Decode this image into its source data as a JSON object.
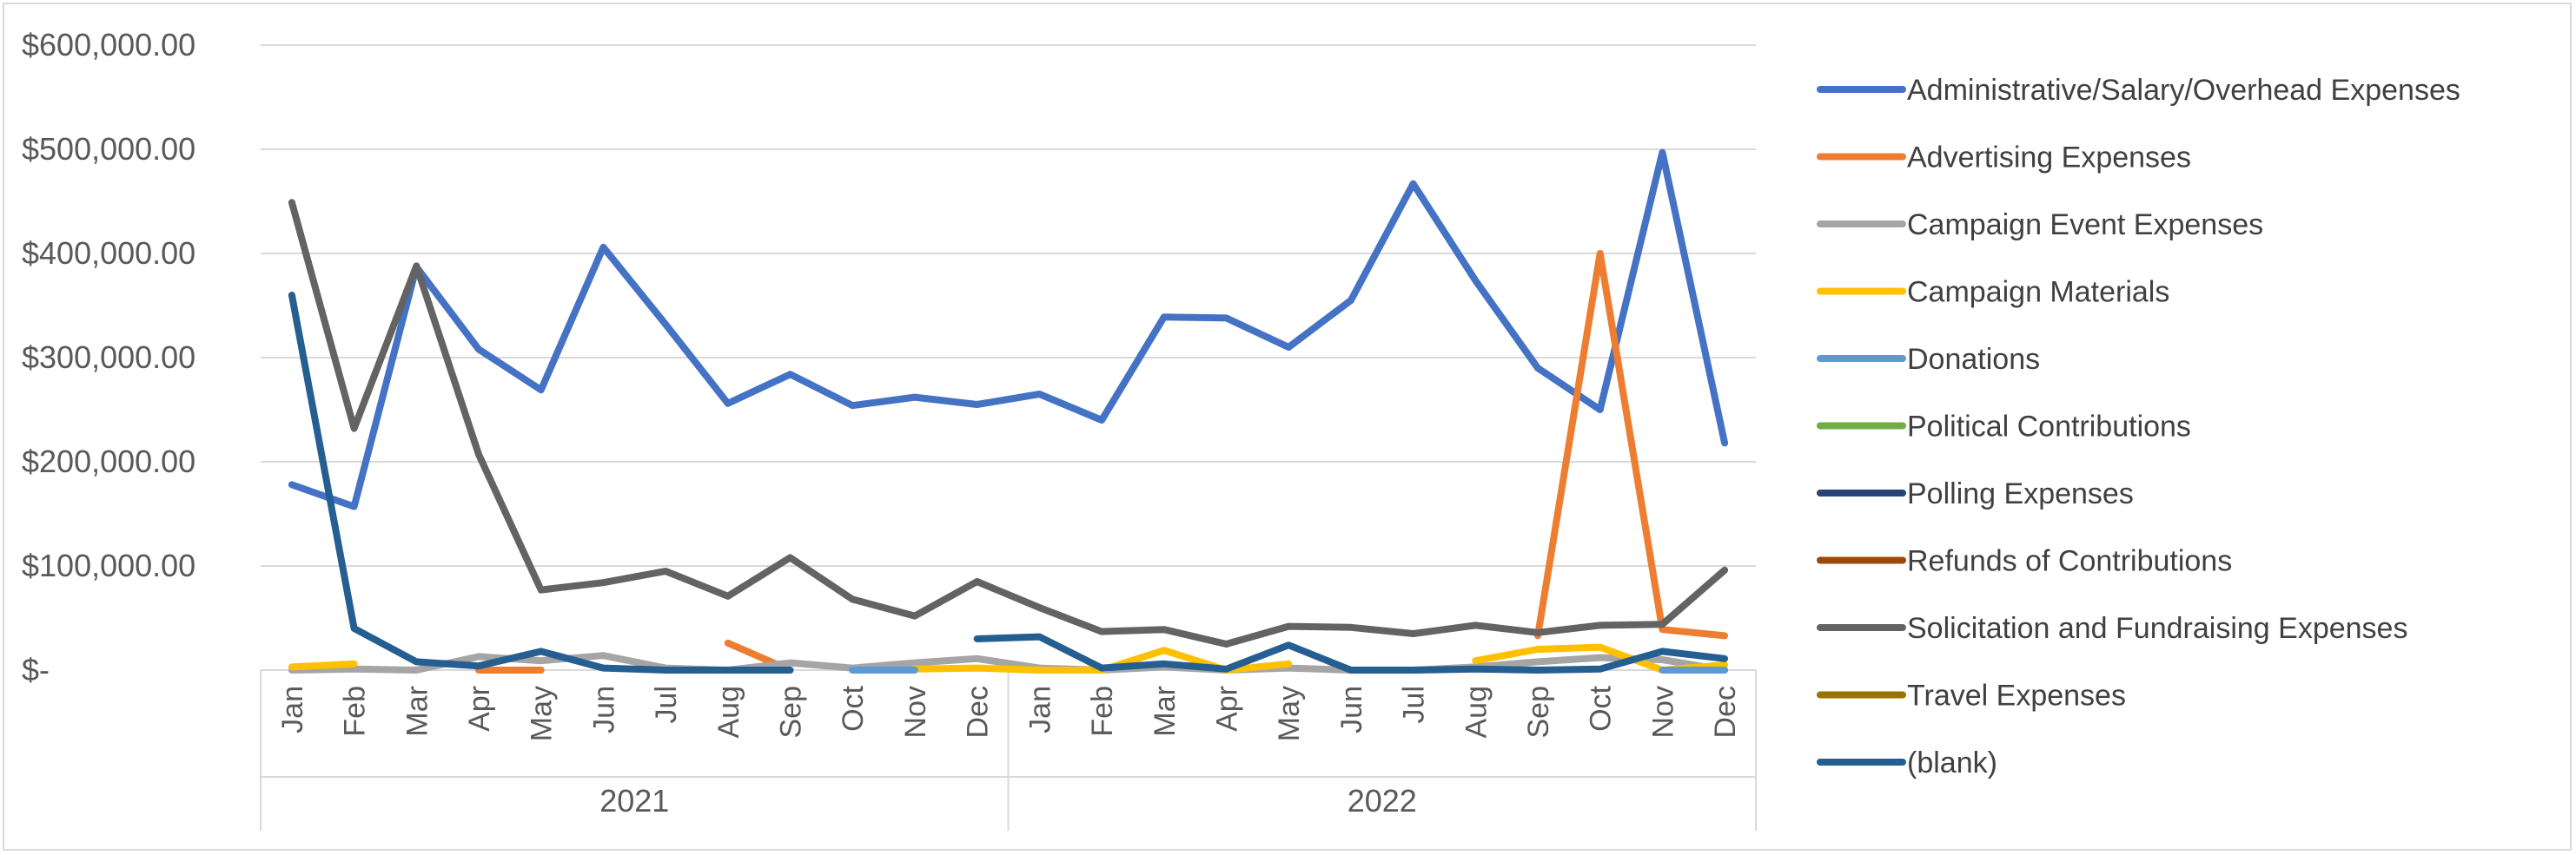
{
  "chart_data": {
    "type": "line",
    "title": "",
    "xlabel": "",
    "ylabel": "",
    "ylim": [
      0,
      600000
    ],
    "yticks": [
      600000,
      500000,
      400000,
      300000,
      200000,
      100000,
      0
    ],
    "ytick_labels": [
      "$600,000.00",
      "$500,000.00",
      "$400,000.00",
      "$300,000.00",
      "$200,000.00",
      "$100,000.00",
      "$-"
    ],
    "grid": true,
    "legend_position": "right",
    "categories": [
      "Jan",
      "Feb",
      "Mar",
      "Apr",
      "May",
      "Jun",
      "Jul",
      "Aug",
      "Sep",
      "Oct",
      "Nov",
      "Dec",
      "Jan",
      "Feb",
      "Mar",
      "Apr",
      "May",
      "Jun",
      "Jul",
      "Aug",
      "Sep",
      "Oct",
      "Nov",
      "Dec"
    ],
    "groups": [
      {
        "label": "2021",
        "start": 0,
        "end": 11
      },
      {
        "label": "2022",
        "start": 12,
        "end": 23
      }
    ],
    "series": [
      {
        "name": "Administrative/Salary/Overhead Expenses",
        "color": "#4472c4",
        "values": [
          178000,
          157000,
          387000,
          308000,
          269000,
          406000,
          332000,
          256000,
          284000,
          254000,
          262000,
          255000,
          265000,
          240000,
          339000,
          338000,
          310000,
          355000,
          467000,
          374000,
          290000,
          250000,
          497000,
          218000
        ]
      },
      {
        "name": "Advertising Expenses",
        "color": "#ed7d31",
        "values": [
          null,
          null,
          null,
          0,
          0,
          null,
          null,
          26000,
          0,
          null,
          null,
          null,
          null,
          null,
          null,
          null,
          null,
          null,
          null,
          null,
          33000,
          400000,
          39000,
          33000
        ]
      },
      {
        "name": "Campaign Event Expenses",
        "color": "#a5a5a5",
        "values": [
          0,
          1000,
          0,
          13000,
          9000,
          14000,
          2000,
          0,
          7000,
          2000,
          7000,
          11000,
          2000,
          0,
          3000,
          0,
          2000,
          0,
          0,
          3000,
          8000,
          12000,
          10000,
          0
        ]
      },
      {
        "name": "Campaign Materials",
        "color": "#ffc000",
        "values": [
          3000,
          6000,
          null,
          null,
          null,
          null,
          null,
          null,
          null,
          null,
          1000,
          2000,
          0,
          0,
          19000,
          0,
          6000,
          null,
          null,
          9000,
          20000,
          22000,
          0,
          5000
        ]
      },
      {
        "name": "Donations",
        "color": "#5b9bd5",
        "values": [
          null,
          null,
          null,
          null,
          null,
          null,
          null,
          null,
          null,
          0,
          0,
          null,
          null,
          null,
          null,
          null,
          null,
          null,
          null,
          null,
          null,
          null,
          0,
          0
        ]
      },
      {
        "name": "Political Contributions",
        "color": "#70ad47",
        "values": [
          null,
          null,
          null,
          null,
          null,
          null,
          null,
          null,
          null,
          null,
          null,
          null,
          null,
          null,
          null,
          null,
          null,
          null,
          null,
          null,
          null,
          null,
          null,
          null
        ]
      },
      {
        "name": "Polling Expenses",
        "color": "#264478",
        "values": [
          null,
          null,
          null,
          null,
          null,
          null,
          null,
          null,
          null,
          null,
          null,
          null,
          null,
          null,
          null,
          null,
          null,
          null,
          null,
          null,
          null,
          null,
          null,
          null
        ]
      },
      {
        "name": "Refunds of Contributions",
        "color": "#9e480e",
        "values": [
          null,
          null,
          null,
          null,
          null,
          null,
          null,
          null,
          null,
          null,
          null,
          null,
          null,
          null,
          null,
          null,
          null,
          null,
          null,
          null,
          null,
          null,
          null,
          null
        ]
      },
      {
        "name": "Solicitation and Fundraising Expenses",
        "color": "#636363",
        "values": [
          449000,
          232000,
          388000,
          207000,
          77000,
          84000,
          95000,
          71000,
          108000,
          68000,
          52000,
          85000,
          60000,
          37000,
          39000,
          25000,
          42000,
          41000,
          35000,
          43000,
          36000,
          43000,
          44000,
          96000
        ]
      },
      {
        "name": "Travel Expenses",
        "color": "#997300",
        "values": [
          null,
          null,
          null,
          null,
          null,
          null,
          null,
          null,
          null,
          null,
          null,
          null,
          null,
          null,
          null,
          null,
          null,
          null,
          null,
          null,
          null,
          null,
          null,
          null
        ]
      },
      {
        "name": "(blank)",
        "color": "#255e91",
        "values": [
          360000,
          40000,
          8000,
          4000,
          18000,
          2000,
          0,
          0,
          0,
          null,
          null,
          30000,
          32000,
          2000,
          6000,
          1000,
          24000,
          0,
          0,
          1000,
          0,
          1000,
          18000,
          11000
        ]
      }
    ]
  }
}
